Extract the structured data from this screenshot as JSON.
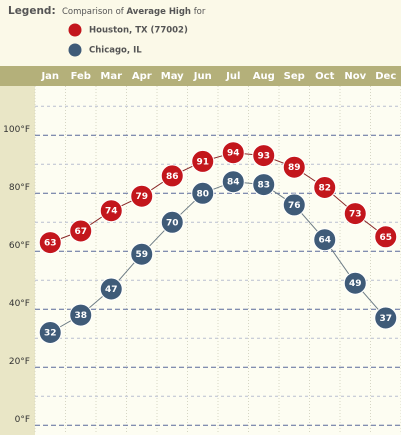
{
  "chart_data": {
    "type": "line",
    "legend_label": "Legend:",
    "title_prefix": "Comparison of",
    "title_emphasis": "Average High",
    "title_suffix": "for",
    "categories": [
      "Jan",
      "Feb",
      "Mar",
      "Apr",
      "May",
      "Jun",
      "Jul",
      "Aug",
      "Sep",
      "Oct",
      "Nov",
      "Dec"
    ],
    "series": [
      {
        "name": "Houston, TX (77002)",
        "color": "#c3161c",
        "line_color": "#8a2a2a",
        "values": [
          63,
          67,
          74,
          79,
          86,
          91,
          94,
          93,
          89,
          82,
          73,
          65
        ]
      },
      {
        "name": "Chicago, IL",
        "color": "#3f5b78",
        "line_color": "#6e7d86",
        "values": [
          32,
          38,
          47,
          59,
          70,
          80,
          84,
          83,
          76,
          64,
          49,
          37
        ]
      }
    ],
    "ylim": [
      -3,
      117
    ],
    "yticks": [
      {
        "value": 0,
        "label": "0°F"
      },
      {
        "value": 20,
        "label": "20°F"
      },
      {
        "value": 40,
        "label": "40°F"
      },
      {
        "value": 60,
        "label": "60°F"
      },
      {
        "value": 80,
        "label": "80°F"
      },
      {
        "value": 100,
        "label": "100°F"
      }
    ],
    "minor_yticks": [
      10,
      30,
      50,
      70,
      90,
      110
    ],
    "grid": true
  }
}
